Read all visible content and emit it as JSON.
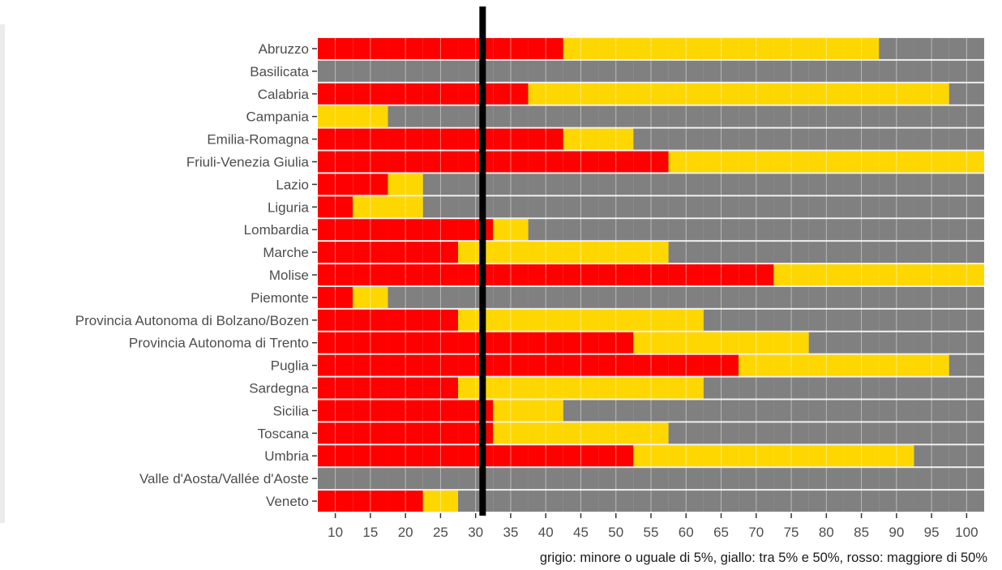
{
  "chart_data": {
    "type": "heatmap",
    "title": "",
    "xlabel": "",
    "ylabel": "",
    "caption": "grigio: minore o uguale di 5%, giallo: tra 5% e 50%, rosso: maggiore di 50%",
    "x": [
      10,
      15,
      20,
      25,
      30,
      35,
      40,
      45,
      50,
      55,
      60,
      65,
      70,
      75,
      80,
      85,
      90,
      95,
      100
    ],
    "xlim": [
      7.5,
      102.5
    ],
    "reference_line_x": 31,
    "colors": {
      "red": "#ff0000",
      "yellow": "#ffd700",
      "grey": "#808080"
    },
    "categories": [
      "Abruzzo",
      "Basilicata",
      "Calabria",
      "Campania",
      "Emilia-Romagna",
      "Friuli-Venezia Giulia",
      "Lazio",
      "Liguria",
      "Lombardia",
      "Marche",
      "Molise",
      "Piemonte",
      "Provincia Autonoma di Bolzano/Bozen",
      "Provincia Autonoma di Trento",
      "Puglia",
      "Sardegna",
      "Sicilia",
      "Toscana",
      "Umbria",
      "Valle d'Aosta/Vallée d'Aoste",
      "Veneto"
    ],
    "rows": [
      [
        "red",
        "red",
        "red",
        "red",
        "red",
        "red",
        "red",
        "yellow",
        "yellow",
        "yellow",
        "yellow",
        "yellow",
        "yellow",
        "yellow",
        "yellow",
        "yellow",
        "grey",
        "grey",
        "grey"
      ],
      [
        "grey",
        "grey",
        "grey",
        "grey",
        "grey",
        "grey",
        "grey",
        "grey",
        "grey",
        "grey",
        "grey",
        "grey",
        "grey",
        "grey",
        "grey",
        "grey",
        "grey",
        "grey",
        "grey"
      ],
      [
        "red",
        "red",
        "red",
        "red",
        "red",
        "red",
        "yellow",
        "yellow",
        "yellow",
        "yellow",
        "yellow",
        "yellow",
        "yellow",
        "yellow",
        "yellow",
        "yellow",
        "yellow",
        "yellow",
        "grey"
      ],
      [
        "yellow",
        "yellow",
        "grey",
        "grey",
        "grey",
        "grey",
        "grey",
        "grey",
        "grey",
        "grey",
        "grey",
        "grey",
        "grey",
        "grey",
        "grey",
        "grey",
        "grey",
        "grey",
        "grey"
      ],
      [
        "red",
        "red",
        "red",
        "red",
        "red",
        "red",
        "red",
        "yellow",
        "yellow",
        "grey",
        "grey",
        "grey",
        "grey",
        "grey",
        "grey",
        "grey",
        "grey",
        "grey",
        "grey"
      ],
      [
        "red",
        "red",
        "red",
        "red",
        "red",
        "red",
        "red",
        "red",
        "red",
        "red",
        "yellow",
        "yellow",
        "yellow",
        "yellow",
        "yellow",
        "yellow",
        "yellow",
        "yellow",
        "yellow"
      ],
      [
        "red",
        "red",
        "yellow",
        "grey",
        "grey",
        "grey",
        "grey",
        "grey",
        "grey",
        "grey",
        "grey",
        "grey",
        "grey",
        "grey",
        "grey",
        "grey",
        "grey",
        "grey",
        "grey"
      ],
      [
        "red",
        "yellow",
        "yellow",
        "grey",
        "grey",
        "grey",
        "grey",
        "grey",
        "grey",
        "grey",
        "grey",
        "grey",
        "grey",
        "grey",
        "grey",
        "grey",
        "grey",
        "grey",
        "grey"
      ],
      [
        "red",
        "red",
        "red",
        "red",
        "red",
        "yellow",
        "grey",
        "grey",
        "grey",
        "grey",
        "grey",
        "grey",
        "grey",
        "grey",
        "grey",
        "grey",
        "grey",
        "grey",
        "grey"
      ],
      [
        "red",
        "red",
        "red",
        "red",
        "yellow",
        "yellow",
        "yellow",
        "yellow",
        "yellow",
        "yellow",
        "grey",
        "grey",
        "grey",
        "grey",
        "grey",
        "grey",
        "grey",
        "grey",
        "grey"
      ],
      [
        "red",
        "red",
        "red",
        "red",
        "red",
        "red",
        "red",
        "red",
        "red",
        "red",
        "red",
        "red",
        "red",
        "yellow",
        "yellow",
        "yellow",
        "yellow",
        "yellow",
        "yellow"
      ],
      [
        "red",
        "yellow",
        "grey",
        "grey",
        "grey",
        "grey",
        "grey",
        "grey",
        "grey",
        "grey",
        "grey",
        "grey",
        "grey",
        "grey",
        "grey",
        "grey",
        "grey",
        "grey",
        "grey"
      ],
      [
        "red",
        "red",
        "red",
        "red",
        "yellow",
        "yellow",
        "yellow",
        "yellow",
        "yellow",
        "yellow",
        "yellow",
        "grey",
        "grey",
        "grey",
        "grey",
        "grey",
        "grey",
        "grey",
        "grey"
      ],
      [
        "red",
        "red",
        "red",
        "red",
        "red",
        "red",
        "red",
        "red",
        "red",
        "yellow",
        "yellow",
        "yellow",
        "yellow",
        "yellow",
        "grey",
        "grey",
        "grey",
        "grey",
        "grey"
      ],
      [
        "red",
        "red",
        "red",
        "red",
        "red",
        "red",
        "red",
        "red",
        "red",
        "red",
        "red",
        "red",
        "yellow",
        "yellow",
        "yellow",
        "yellow",
        "yellow",
        "yellow",
        "grey"
      ],
      [
        "red",
        "red",
        "red",
        "red",
        "yellow",
        "yellow",
        "yellow",
        "yellow",
        "yellow",
        "yellow",
        "yellow",
        "grey",
        "grey",
        "grey",
        "grey",
        "grey",
        "grey",
        "grey",
        "grey"
      ],
      [
        "red",
        "red",
        "red",
        "red",
        "red",
        "yellow",
        "yellow",
        "grey",
        "grey",
        "grey",
        "grey",
        "grey",
        "grey",
        "grey",
        "grey",
        "grey",
        "grey",
        "grey",
        "grey"
      ],
      [
        "red",
        "red",
        "red",
        "red",
        "red",
        "yellow",
        "yellow",
        "yellow",
        "yellow",
        "yellow",
        "grey",
        "grey",
        "grey",
        "grey",
        "grey",
        "grey",
        "grey",
        "grey",
        "grey"
      ],
      [
        "red",
        "red",
        "red",
        "red",
        "red",
        "red",
        "red",
        "red",
        "red",
        "yellow",
        "yellow",
        "yellow",
        "yellow",
        "yellow",
        "yellow",
        "yellow",
        "yellow",
        "grey",
        "grey"
      ],
      [
        "grey",
        "grey",
        "grey",
        "grey",
        "grey",
        "grey",
        "grey",
        "grey",
        "grey",
        "grey",
        "grey",
        "grey",
        "grey",
        "grey",
        "grey",
        "grey",
        "grey",
        "grey",
        "grey"
      ],
      [
        "red",
        "red",
        "red",
        "yellow",
        "grey",
        "grey",
        "grey",
        "grey",
        "grey",
        "grey",
        "grey",
        "grey",
        "grey",
        "grey",
        "grey",
        "grey",
        "grey",
        "grey",
        "grey"
      ]
    ]
  }
}
